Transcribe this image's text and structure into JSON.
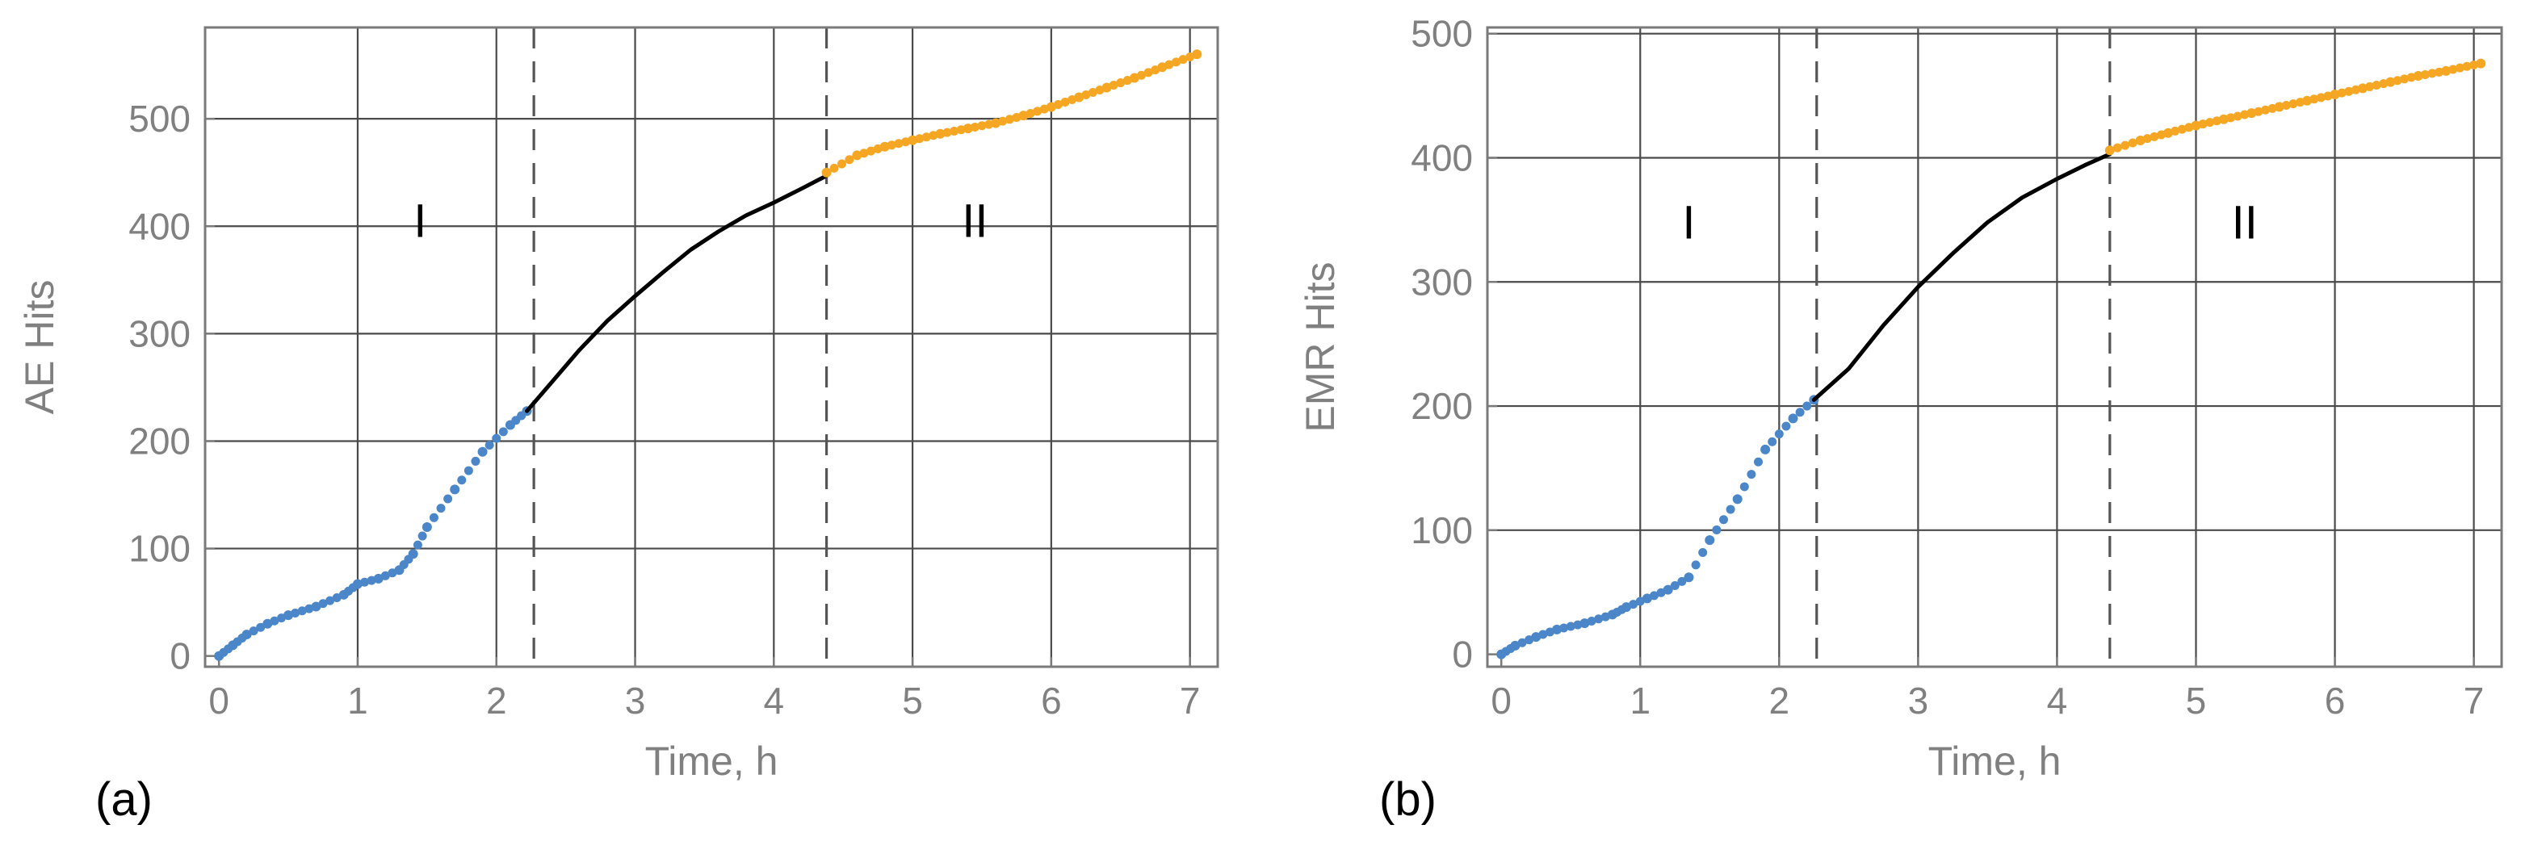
{
  "chart_data": [
    {
      "type": "scatter",
      "id": "a",
      "panel_label": "(a)",
      "xlabel": "Time, h",
      "ylabel": "AE Hits",
      "xlim": [
        -0.1,
        7.2
      ],
      "ylim": [
        -10,
        585
      ],
      "xticks": [
        0,
        1,
        2,
        3,
        4,
        5,
        6,
        7
      ],
      "yticks": [
        0,
        100,
        200,
        300,
        400,
        500
      ],
      "grid_x": [
        1,
        2,
        3,
        4,
        5,
        6,
        7
      ],
      "grid_y": [
        100,
        200,
        300,
        400,
        500
      ],
      "phase_boundaries": [
        2.27,
        4.38
      ],
      "region_labels": [
        {
          "text": "I",
          "x": 1.45,
          "y": 390
        },
        {
          "text": "II",
          "x": 5.45,
          "y": 390
        }
      ],
      "colors": {
        "stage1": "#4a86c8",
        "fit": "#000000",
        "stage2": "#f5a623"
      },
      "series": [
        {
          "name": "stage I data",
          "color": "#4a86c8",
          "points": [
            [
              0,
              0
            ],
            [
              0.1,
              10
            ],
            [
              0.2,
              20
            ],
            [
              0.35,
              30
            ],
            [
              0.5,
              38
            ],
            [
              0.7,
              46
            ],
            [
              0.9,
              57
            ],
            [
              1.0,
              67
            ],
            [
              1.15,
              72
            ],
            [
              1.3,
              80
            ],
            [
              1.4,
              95
            ],
            [
              1.5,
              120
            ],
            [
              1.7,
              155
            ],
            [
              1.9,
              190
            ],
            [
              2.1,
              215
            ],
            [
              2.22,
              228
            ]
          ]
        },
        {
          "name": "fit",
          "color": "#000000",
          "points": [
            [
              2.22,
              228
            ],
            [
              2.4,
              255
            ],
            [
              2.6,
              285
            ],
            [
              2.8,
              312
            ],
            [
              3.0,
              335
            ],
            [
              3.2,
              357
            ],
            [
              3.4,
              378
            ],
            [
              3.6,
              395
            ],
            [
              3.8,
              410
            ],
            [
              4.0,
              422
            ],
            [
              4.2,
              435
            ],
            [
              4.38,
              447
            ]
          ]
        },
        {
          "name": "stage II data",
          "color": "#f5a623",
          "points": [
            [
              4.38,
              450
            ],
            [
              4.6,
              466
            ],
            [
              4.8,
              474
            ],
            [
              5.0,
              480
            ],
            [
              5.2,
              486
            ],
            [
              5.4,
              491
            ],
            [
              5.6,
              496
            ],
            [
              5.8,
              503
            ],
            [
              6.0,
              511
            ],
            [
              6.2,
              520
            ],
            [
              6.4,
              529
            ],
            [
              6.6,
              538
            ],
            [
              6.8,
              548
            ],
            [
              7.05,
              560
            ]
          ]
        }
      ]
    },
    {
      "type": "scatter",
      "id": "b",
      "panel_label": "(b)",
      "xlabel": "Time, h",
      "ylabel": "EMR Hits",
      "xlim": [
        -0.1,
        7.2
      ],
      "ylim": [
        -10,
        505
      ],
      "xticks": [
        0,
        1,
        2,
        3,
        4,
        5,
        6,
        7
      ],
      "yticks": [
        0,
        100,
        200,
        300,
        400,
        500
      ],
      "grid_x": [
        1,
        2,
        3,
        4,
        5,
        6,
        7
      ],
      "grid_y": [
        100,
        200,
        300,
        400,
        500
      ],
      "phase_boundaries": [
        2.27,
        4.38
      ],
      "region_labels": [
        {
          "text": "I",
          "x": 1.35,
          "y": 335
        },
        {
          "text": "II",
          "x": 5.35,
          "y": 335
        }
      ],
      "colors": {
        "stage1": "#4a86c8",
        "fit": "#000000",
        "stage2": "#f5a623"
      },
      "series": [
        {
          "name": "stage I data",
          "color": "#4a86c8",
          "points": [
            [
              0,
              0
            ],
            [
              0.1,
              7
            ],
            [
              0.25,
              14
            ],
            [
              0.4,
              20
            ],
            [
              0.6,
              25
            ],
            [
              0.8,
              32
            ],
            [
              0.9,
              38
            ],
            [
              1.05,
              45
            ],
            [
              1.2,
              52
            ],
            [
              1.35,
              62
            ],
            [
              1.5,
              92
            ],
            [
              1.7,
              125
            ],
            [
              1.9,
              165
            ],
            [
              2.1,
              190
            ],
            [
              2.25,
              205
            ]
          ]
        },
        {
          "name": "fit",
          "color": "#000000",
          "points": [
            [
              2.25,
              205
            ],
            [
              2.5,
              230
            ],
            [
              2.75,
              265
            ],
            [
              3.0,
              296
            ],
            [
              3.25,
              323
            ],
            [
              3.5,
              348
            ],
            [
              3.75,
              368
            ],
            [
              4.0,
              383
            ],
            [
              4.2,
              394
            ],
            [
              4.38,
              403
            ]
          ]
        },
        {
          "name": "stage II data",
          "color": "#f5a623",
          "points": [
            [
              4.38,
              406
            ],
            [
              4.6,
              414
            ],
            [
              4.8,
              420
            ],
            [
              5.0,
              426
            ],
            [
              5.2,
              431
            ],
            [
              5.4,
              436
            ],
            [
              5.6,
              441
            ],
            [
              5.8,
              446
            ],
            [
              6.0,
              451
            ],
            [
              6.2,
              456
            ],
            [
              6.4,
              461
            ],
            [
              6.6,
              466
            ],
            [
              6.8,
              470
            ],
            [
              7.05,
              476
            ]
          ]
        }
      ]
    }
  ]
}
